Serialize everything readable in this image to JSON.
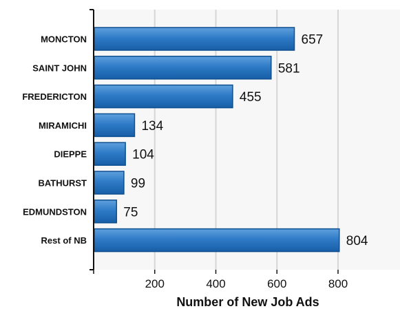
{
  "chart_data": {
    "type": "bar",
    "orientation": "horizontal",
    "categories": [
      "MONCTON",
      "SAINT JOHN",
      "FREDERICTON",
      "MIRAMICHI",
      "DIEPPE",
      "BATHURST",
      "EDMUNDSTON",
      "Rest of NB"
    ],
    "values": [
      657,
      581,
      455,
      134,
      104,
      99,
      75,
      804
    ],
    "value_labels": [
      "657",
      "581",
      "455",
      "134",
      "104",
      "99",
      "75",
      "804"
    ],
    "xlabel": "Number of New Job Ads",
    "ylabel": "",
    "xlim": [
      0,
      1000
    ],
    "xticks": [
      200,
      400,
      600,
      800
    ],
    "xtick_labels": [
      "200",
      "400",
      "600",
      "800"
    ],
    "grid": true,
    "legend": "none",
    "colors": {
      "bar_top": "#5fa0dd",
      "bar_mid": "#2f7bc7",
      "bar_bottom": "#175ea6",
      "bar_stroke": "#0e4f91",
      "plot_background": "#f7f7f7",
      "grid": "#d6d6d6",
      "axis": "#111111"
    }
  }
}
